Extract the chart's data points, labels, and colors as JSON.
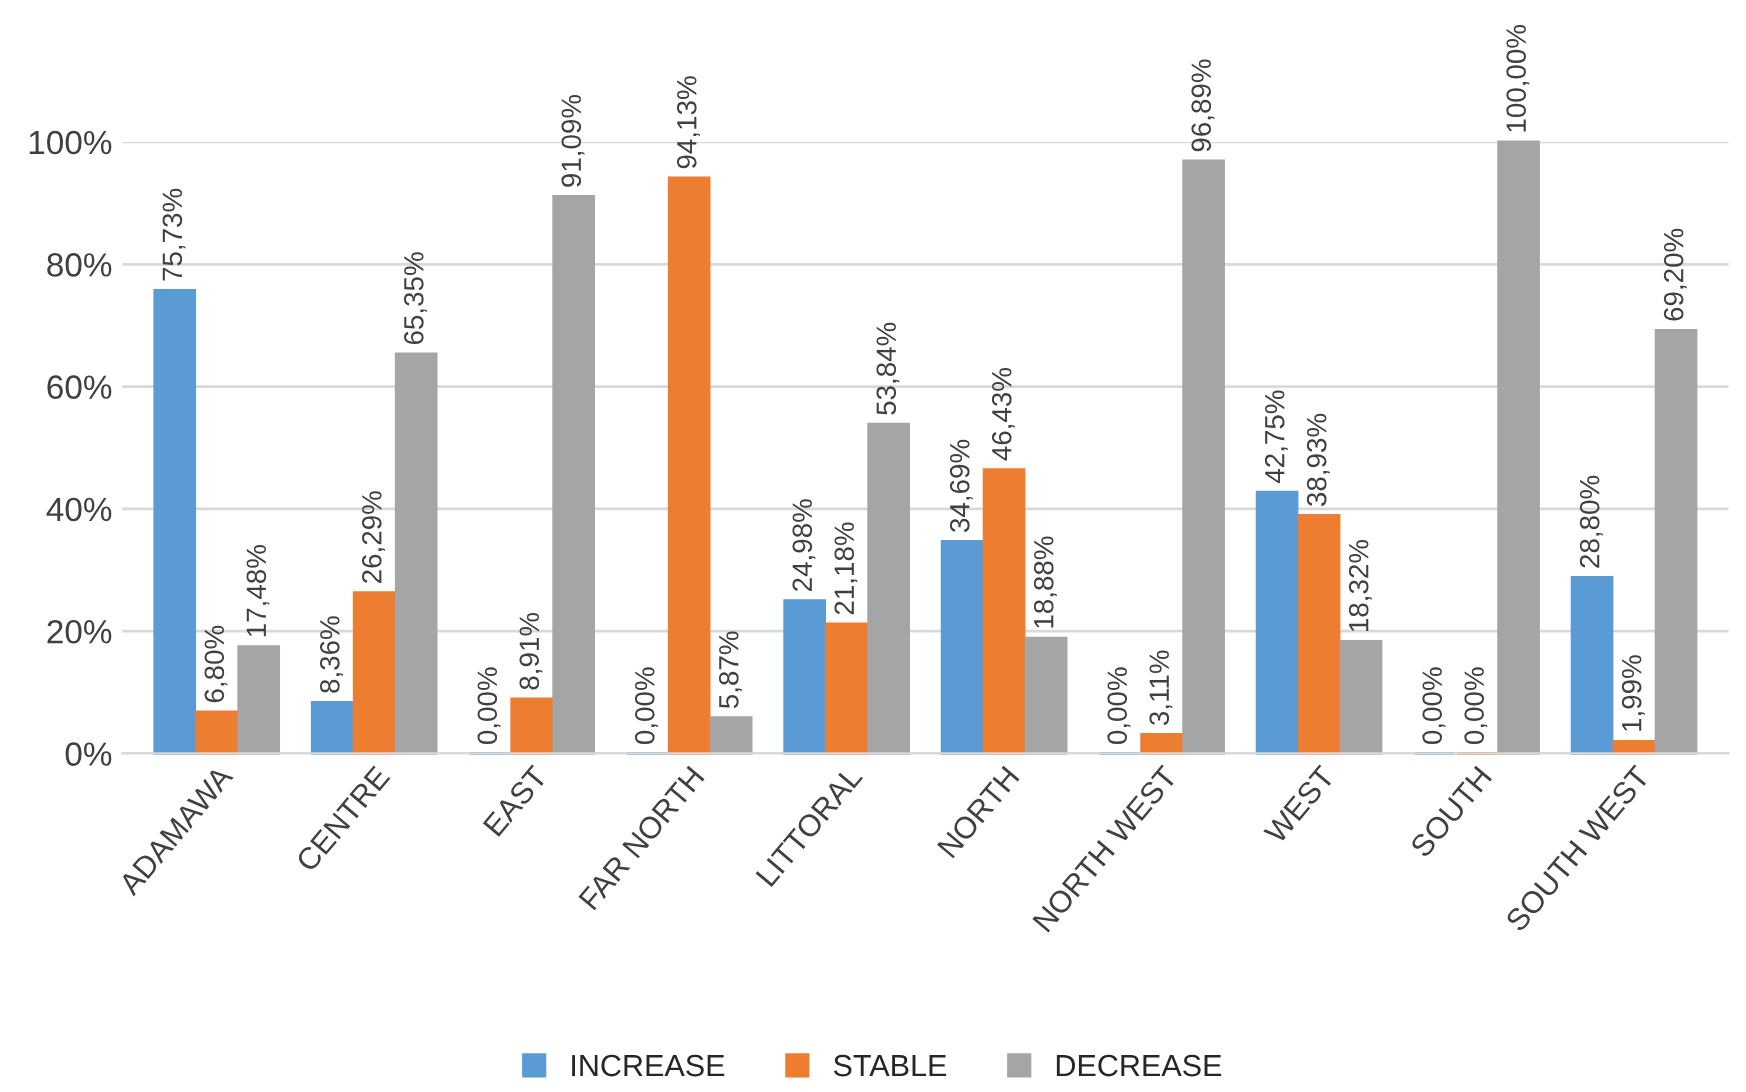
{
  "chart_data": {
    "type": "bar",
    "categories": [
      "ADAMAWA",
      "CENTRE",
      "EAST",
      "FAR NORTH",
      "LITTORAL",
      "NORTH",
      "NORTH WEST",
      "WEST",
      "SOUTH",
      "SOUTH WEST"
    ],
    "series": [
      {
        "name": "INCREASE",
        "color": "#5b9bd5",
        "values": [
          75.73,
          8.36,
          0.0,
          0.0,
          24.98,
          34.69,
          0.0,
          42.75,
          0.0,
          28.8
        ],
        "value_labels": [
          "75,73%",
          "8,36%",
          "0,00%",
          "0,00%",
          "24,98%",
          "34,69%",
          "0,00%",
          "42,75%",
          "0,00%",
          "28,80%"
        ]
      },
      {
        "name": "STABLE",
        "color": "#ed7d31",
        "values": [
          6.8,
          26.29,
          8.91,
          94.13,
          21.18,
          46.43,
          3.11,
          38.93,
          0.0,
          1.99
        ],
        "value_labels": [
          "6,80%",
          "26,29%",
          "8,91%",
          "94,13%",
          "21,18%",
          "46,43%",
          "3,11%",
          "38,93%",
          "0,00%",
          "1,99%"
        ]
      },
      {
        "name": "DECREASE",
        "color": "#a5a5a5",
        "values": [
          17.48,
          65.35,
          91.09,
          5.87,
          53.84,
          18.88,
          96.89,
          18.32,
          100.0,
          69.2
        ],
        "value_labels": [
          "17,48%",
          "65,35%",
          "91,09%",
          "5,87%",
          "53,84%",
          "18,88%",
          "96,89%",
          "18,32%",
          "100,00%",
          "69,20%"
        ]
      }
    ],
    "ylim": [
      0,
      100
    ],
    "yticks": [
      {
        "value": 0,
        "label": "0%"
      },
      {
        "value": 20,
        "label": "20%"
      },
      {
        "value": 40,
        "label": "40%"
      },
      {
        "value": 60,
        "label": "60%"
      },
      {
        "value": 80,
        "label": "80%"
      },
      {
        "value": 100,
        "label": "100%"
      }
    ],
    "grid": "y",
    "legend": "bottom"
  }
}
